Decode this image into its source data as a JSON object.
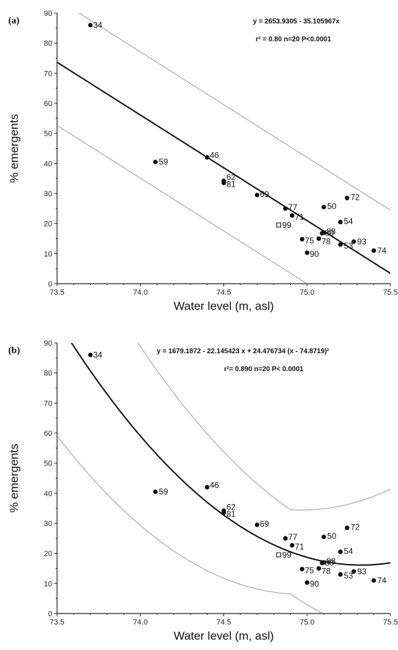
{
  "chart_data": [
    {
      "panel_label": "(a)",
      "type": "scatter",
      "xlabel": "Water level (m, asl)",
      "ylabel": "% emergents",
      "xlim": [
        73.5,
        75.5
      ],
      "ylim": [
        0,
        90
      ],
      "xticks": [
        "73.5",
        "74.0",
        "74.5",
        "75.0",
        "75.5"
      ],
      "yticks": [
        "0",
        "10",
        "20",
        "30",
        "40",
        "50",
        "60",
        "70",
        "80",
        "90"
      ],
      "equation": "y = 2653.9305 - 35.105967x",
      "stats": "r² = 0.80  n=20  P<0.0001",
      "fit": "linear",
      "points": [
        {
          "label": "34",
          "x": 73.7,
          "y": 86,
          "marker": "filled"
        },
        {
          "label": "59",
          "x": 74.09,
          "y": 40.5,
          "marker": "filled"
        },
        {
          "label": "46",
          "x": 74.4,
          "y": 42,
          "marker": "filled"
        },
        {
          "label": "81",
          "x": 74.5,
          "y": 33.5,
          "marker": "filled"
        },
        {
          "label": "62",
          "x": 74.5,
          "y": 34.2,
          "marker": "filled"
        },
        {
          "label": "69",
          "x": 74.7,
          "y": 29.5,
          "marker": "filled"
        },
        {
          "label": "77",
          "x": 74.87,
          "y": 25,
          "marker": "filled"
        },
        {
          "label": "71",
          "x": 74.91,
          "y": 22.7,
          "marker": "filled"
        },
        {
          "label": "99",
          "x": 74.83,
          "y": 19.5,
          "marker": "open"
        },
        {
          "label": "75",
          "x": 74.97,
          "y": 14.8,
          "marker": "filled"
        },
        {
          "label": "90",
          "x": 75.0,
          "y": 10.3,
          "marker": "filled"
        },
        {
          "label": "78",
          "x": 75.07,
          "y": 15,
          "marker": "filled"
        },
        {
          "label": "80",
          "x": 75.09,
          "y": 16.8,
          "marker": "filled"
        },
        {
          "label": "88",
          "x": 75.1,
          "y": 17,
          "marker": "filled"
        },
        {
          "label": "50",
          "x": 75.1,
          "y": 25.5,
          "marker": "filled"
        },
        {
          "label": "72",
          "x": 75.24,
          "y": 28.5,
          "marker": "filled"
        },
        {
          "label": "54",
          "x": 75.2,
          "y": 20.5,
          "marker": "filled"
        },
        {
          "label": "53",
          "x": 75.2,
          "y": 13,
          "marker": "filled"
        },
        {
          "label": "93",
          "x": 75.28,
          "y": 14,
          "marker": "filled"
        },
        {
          "label": "74",
          "x": 75.4,
          "y": 11,
          "marker": "filled"
        }
      ]
    },
    {
      "panel_label": "(b)",
      "type": "scatter",
      "xlabel": "Water level (m, asl)",
      "ylabel": "% emergents",
      "xlim": [
        73.5,
        75.5
      ],
      "ylim": [
        0,
        90
      ],
      "xticks": [
        "73.5",
        "74.0",
        "74.5",
        "75.0",
        "75.5"
      ],
      "yticks": [
        "0",
        "10",
        "20",
        "30",
        "40",
        "50",
        "60",
        "70",
        "80",
        "90"
      ],
      "equation": "y = 1679.1872 - 22.145423 x + 24.476734 (x - 74.8719)²",
      "stats": "r²= 0.890  n=20  P< 0.0001",
      "fit": "quadratic",
      "points": [
        {
          "label": "34",
          "x": 73.7,
          "y": 86,
          "marker": "filled"
        },
        {
          "label": "59",
          "x": 74.09,
          "y": 40.5,
          "marker": "filled"
        },
        {
          "label": "46",
          "x": 74.4,
          "y": 42,
          "marker": "filled"
        },
        {
          "label": "81",
          "x": 74.5,
          "y": 33.5,
          "marker": "filled"
        },
        {
          "label": "62",
          "x": 74.5,
          "y": 34.2,
          "marker": "filled"
        },
        {
          "label": "69",
          "x": 74.7,
          "y": 29.5,
          "marker": "filled"
        },
        {
          "label": "77",
          "x": 74.87,
          "y": 25,
          "marker": "filled"
        },
        {
          "label": "71",
          "x": 74.91,
          "y": 22.7,
          "marker": "filled"
        },
        {
          "label": "99",
          "x": 74.83,
          "y": 19.5,
          "marker": "open"
        },
        {
          "label": "75",
          "x": 74.97,
          "y": 14.8,
          "marker": "filled"
        },
        {
          "label": "90",
          "x": 75.0,
          "y": 10.3,
          "marker": "filled"
        },
        {
          "label": "78",
          "x": 75.07,
          "y": 15,
          "marker": "filled"
        },
        {
          "label": "80",
          "x": 75.09,
          "y": 16.8,
          "marker": "filled"
        },
        {
          "label": "88",
          "x": 75.1,
          "y": 17,
          "marker": "filled"
        },
        {
          "label": "50",
          "x": 75.1,
          "y": 25.5,
          "marker": "filled"
        },
        {
          "label": "72",
          "x": 75.24,
          "y": 28.5,
          "marker": "filled"
        },
        {
          "label": "54",
          "x": 75.2,
          "y": 20.5,
          "marker": "filled"
        },
        {
          "label": "53",
          "x": 75.2,
          "y": 13,
          "marker": "filled"
        },
        {
          "label": "93",
          "x": 75.28,
          "y": 14,
          "marker": "filled"
        },
        {
          "label": "74",
          "x": 75.4,
          "y": 11,
          "marker": "filled"
        }
      ]
    }
  ]
}
